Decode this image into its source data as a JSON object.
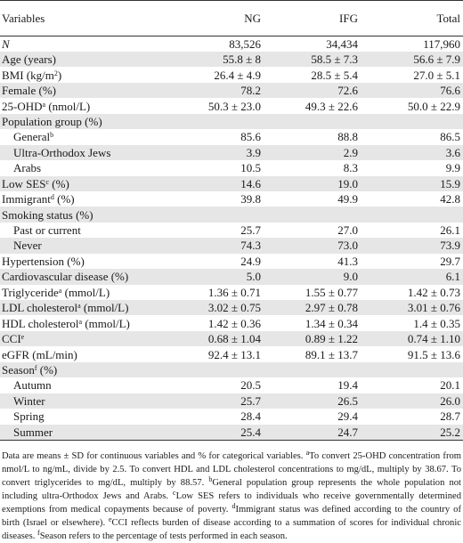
{
  "table": {
    "headers": [
      "Variables",
      "NG",
      "IFG",
      "Total"
    ],
    "rows": [
      {
        "label": "N",
        "italic": true,
        "values": [
          "83,526",
          "34,434",
          "117,960"
        ]
      },
      {
        "label": "Age (years)",
        "values": [
          "55.8 ± 8",
          "58.5 ± 7.3",
          "56.6 ± 7.9"
        ]
      },
      {
        "label": "BMI (kg/m",
        "sup": "2",
        "suffix": ")",
        "values": [
          "26.4 ± 4.9",
          "28.5 ± 5.4",
          "27.0 ± 5.1"
        ]
      },
      {
        "label": "Female (%)",
        "values": [
          "78.2",
          "72.6",
          "76.6"
        ]
      },
      {
        "label": "25-OHD",
        "sup": "a",
        "suffix": " (nmol/L)",
        "values": [
          "50.3 ± 23.0",
          "49.3 ± 22.6",
          "50.0 ± 22.9"
        ]
      },
      {
        "label": "Population group (%)",
        "values": [
          "",
          "",
          ""
        ]
      },
      {
        "label": "General",
        "sup": "b",
        "indent": true,
        "values": [
          "85.6",
          "88.8",
          "86.5"
        ]
      },
      {
        "label": "Ultra-Orthodox Jews",
        "indent": true,
        "values": [
          "3.9",
          "2.9",
          "3.6"
        ]
      },
      {
        "label": "Arabs",
        "indent": true,
        "values": [
          "10.5",
          "8.3",
          "9.9"
        ]
      },
      {
        "label": "Low SES",
        "sup": "c",
        "suffix": " (%)",
        "values": [
          "14.6",
          "19.0",
          "15.9"
        ]
      },
      {
        "label": "Immigrant",
        "sup": "d",
        "suffix": " (%)",
        "values": [
          "39.8",
          "49.9",
          "42.8"
        ]
      },
      {
        "label": "Smoking status (%)",
        "values": [
          "",
          "",
          ""
        ]
      },
      {
        "label": "Past or current",
        "indent": true,
        "values": [
          "25.7",
          "27.0",
          "26.1"
        ]
      },
      {
        "label": "Never",
        "indent": true,
        "values": [
          "74.3",
          "73.0",
          "73.9"
        ]
      },
      {
        "label": "Hypertension (%)",
        "values": [
          "24.9",
          "41.3",
          "29.7"
        ]
      },
      {
        "label": "Cardiovascular disease (%)",
        "values": [
          "5.0",
          "9.0",
          "6.1"
        ]
      },
      {
        "label": "Triglyceride",
        "sup": "a",
        "suffix": " (mmol/L)",
        "values": [
          "1.36 ± 0.71",
          "1.55 ± 0.77",
          "1.42 ± 0.73"
        ]
      },
      {
        "label": "LDL cholesterol",
        "sup": "a",
        "suffix": " (mmol/L)",
        "values": [
          "3.02 ± 0.75",
          "2.97 ± 0.78",
          "3.01 ± 0.76"
        ]
      },
      {
        "label": "HDL cholesterol",
        "sup": "a",
        "suffix": " (mmol/L)",
        "values": [
          "1.42 ± 0.36",
          "1.34 ± 0.34",
          "1.4 ± 0.35"
        ]
      },
      {
        "label": "CCI",
        "sup": "e",
        "values": [
          "0.68 ± 1.04",
          "0.89 ± 1.22",
          "0.74 ± 1.10"
        ]
      },
      {
        "label": "eGFR (mL/min)",
        "values": [
          "92.4 ± 13.1",
          "89.1 ± 13.7",
          "91.5 ± 13.6"
        ]
      },
      {
        "label": "Season",
        "sup": "f",
        "suffix": " (%)",
        "values": [
          "",
          "",
          ""
        ]
      },
      {
        "label": "Autumn",
        "indent": true,
        "values": [
          "20.5",
          "19.4",
          "20.1"
        ]
      },
      {
        "label": "Winter",
        "indent": true,
        "values": [
          "25.7",
          "26.5",
          "26.0"
        ]
      },
      {
        "label": "Spring",
        "indent": true,
        "values": [
          "28.4",
          "29.4",
          "28.7"
        ]
      },
      {
        "label": "Summer",
        "indent": true,
        "values": [
          "25.4",
          "24.7",
          "25.2"
        ]
      }
    ]
  },
  "footnote": {
    "intro": "Data are means ± SD for continuous variables and % for categorical variables. ",
    "a": "To convert 25-OHD concentration from nmol/L to ng/mL, divide by 2.5. To convert HDL and LDL cholesterol concentrations to mg/dL, multiply by 38.67. To convert triglycerides to mg/dL, multiply by 88.57. ",
    "b": "General population group represents the whole population not including ultra-Orthodox Jews and Arabs. ",
    "c": "Low SES refers to individuals who receive governmentally determined exemptions from medical copayments because of poverty. ",
    "d": "Immigrant status was defined according to the country of birth (Israel or elsewhere). ",
    "e": "CCI reflects burden of disease according to a summation of scores for individual chronic diseases. ",
    "f": "Season refers to the percentage of tests performed in each season.",
    "marks": {
      "a": "a",
      "b": "b",
      "c": "c",
      "d": "d",
      "e": "e",
      "f": "f"
    }
  }
}
